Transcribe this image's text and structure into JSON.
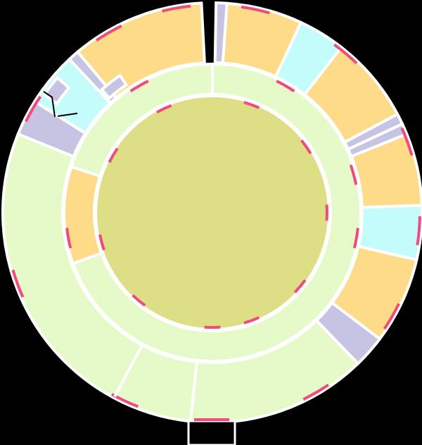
{
  "diagram": {
    "type": "sunburst",
    "colors": {
      "background": "#000000",
      "separator": "#ffffff",
      "center": "#dede86",
      "level1": "#e5fac8",
      "level2_orange": "#fddb88",
      "level2_cyan": "#c4fcfc",
      "level2_lavender": "#c6c4e2",
      "dash": "#ef4b7c"
    },
    "levels": [
      "center",
      "inner_ring",
      "outer_ring"
    ]
  }
}
